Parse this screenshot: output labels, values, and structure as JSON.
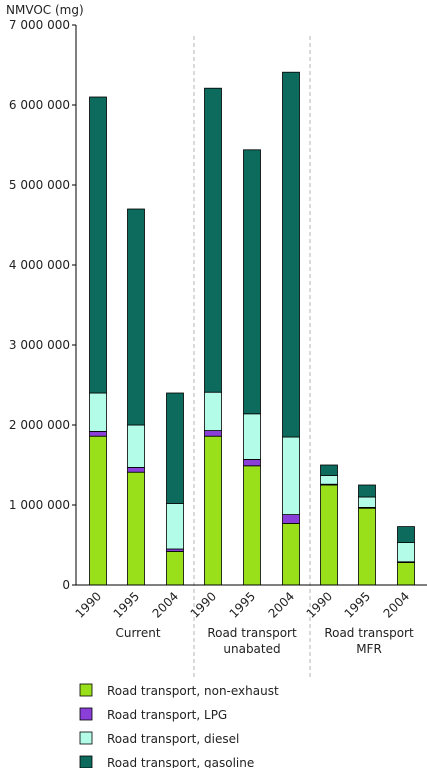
{
  "chart_data": {
    "type": "bar",
    "stacked": true,
    "ylabel": "NMVOC  (mg)",
    "ylim": [
      0,
      7000000
    ],
    "yticks": [
      0,
      1000000,
      2000000,
      3000000,
      4000000,
      5000000,
      6000000,
      7000000
    ],
    "ytick_labels": [
      "0",
      "1 000 000",
      "2 000 000",
      "3 000 000",
      "4 000 000",
      "5 000 000",
      "6 000 000",
      "7 000 000"
    ],
    "groups": [
      {
        "label": [
          "Current"
        ],
        "categories": [
          "1990",
          "1995",
          "2004"
        ]
      },
      {
        "label": [
          "Road transport",
          "unabated"
        ],
        "categories": [
          "1990",
          "1995",
          "2004"
        ]
      },
      {
        "label": [
          "Road transport",
          "MFR"
        ],
        "categories": [
          "1990",
          "1995",
          "2004"
        ]
      }
    ],
    "categories": [
      "1990",
      "1995",
      "2004",
      "1990",
      "1995",
      "2004",
      "1990",
      "1995",
      "2004"
    ],
    "series": [
      {
        "name": "Road transport, non-exhaust",
        "color": "#99e01a",
        "values": [
          1860000,
          1410000,
          420000,
          1860000,
          1490000,
          770000,
          1250000,
          960000,
          280000
        ]
      },
      {
        "name": "Road transport, LPG",
        "color": "#8a3fd9",
        "values": [
          60000,
          60000,
          30000,
          70000,
          80000,
          110000,
          10000,
          10000,
          10000
        ]
      },
      {
        "name": "Road transport, diesel",
        "color": "#b3fce8",
        "values": [
          480000,
          530000,
          570000,
          480000,
          570000,
          970000,
          110000,
          130000,
          240000
        ]
      },
      {
        "name": "Road transport, gasoline",
        "color": "#0d6b5e",
        "values": [
          3700000,
          2700000,
          1380000,
          3800000,
          3300000,
          4560000,
          130000,
          150000,
          200000
        ]
      }
    ],
    "grid": false,
    "legend_position": "bottom"
  }
}
